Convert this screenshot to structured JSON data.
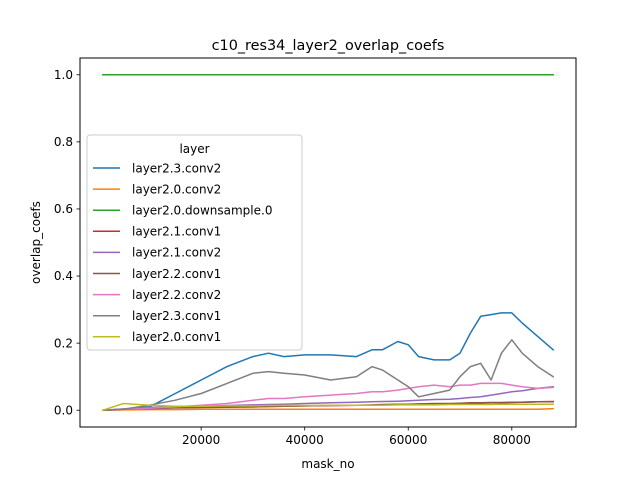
{
  "chart_data": {
    "type": "line",
    "title": "c10_res34_layer2_overlap_coefs",
    "xlabel": "mask_no",
    "ylabel": "overlap_coefs",
    "xlim": [
      -3400,
      92400
    ],
    "ylim": [
      -0.05,
      1.05
    ],
    "xticks": [
      20000,
      40000,
      60000,
      80000
    ],
    "xtick_labels": [
      "20000",
      "40000",
      "60000",
      "80000"
    ],
    "yticks": [
      0.0,
      0.2,
      0.4,
      0.6,
      0.8,
      1.0
    ],
    "ytick_labels": [
      "0.0",
      "0.2",
      "0.4",
      "0.6",
      "0.8",
      "1.0"
    ],
    "grid": false,
    "legend": {
      "title": "layer",
      "placement": "center-left"
    },
    "x": [
      1000,
      5000,
      10000,
      15000,
      20000,
      25000,
      30000,
      33000,
      36000,
      40000,
      45000,
      50000,
      53000,
      55000,
      58000,
      60000,
      62000,
      65000,
      68000,
      70000,
      72000,
      74000,
      76000,
      78000,
      80000,
      82000,
      85000,
      88000
    ],
    "series": [
      {
        "name": "layer2.3.conv2",
        "color": "#1f77b4",
        "values": [
          0.0,
          0.002,
          0.01,
          0.05,
          0.09,
          0.13,
          0.16,
          0.17,
          0.16,
          0.165,
          0.165,
          0.16,
          0.18,
          0.18,
          0.205,
          0.195,
          0.16,
          0.15,
          0.15,
          0.17,
          0.23,
          0.28,
          0.285,
          0.29,
          0.29,
          0.26,
          0.22,
          0.18
        ]
      },
      {
        "name": "layer2.0.conv2",
        "color": "#ff7f0e",
        "values": [
          0.0,
          0.001,
          0.002,
          0.002,
          0.003,
          0.003,
          0.003,
          0.003,
          0.003,
          0.003,
          0.003,
          0.003,
          0.003,
          0.003,
          0.003,
          0.003,
          0.003,
          0.003,
          0.003,
          0.003,
          0.003,
          0.003,
          0.003,
          0.003,
          0.003,
          0.003,
          0.003,
          0.005
        ]
      },
      {
        "name": "layer2.0.downsample.0",
        "color": "#2ca02c",
        "values": [
          1.0,
          1.0,
          1.0,
          1.0,
          1.0,
          1.0,
          1.0,
          1.0,
          1.0,
          1.0,
          1.0,
          1.0,
          1.0,
          1.0,
          1.0,
          1.0,
          1.0,
          1.0,
          1.0,
          1.0,
          1.0,
          1.0,
          1.0,
          1.0,
          1.0,
          1.0,
          1.0,
          1.0
        ]
      },
      {
        "name": "layer2.1.conv1",
        "color": "#d62728",
        "values": [
          0.0,
          0.003,
          0.006,
          0.008,
          0.009,
          0.01,
          0.01,
          0.011,
          0.012,
          0.013,
          0.014,
          0.015,
          0.015,
          0.016,
          0.017,
          0.018,
          0.018,
          0.019,
          0.019,
          0.02,
          0.02,
          0.021,
          0.022,
          0.022,
          0.023,
          0.024,
          0.025,
          0.026
        ]
      },
      {
        "name": "layer2.1.conv2",
        "color": "#9467bd",
        "values": [
          0.0,
          0.004,
          0.008,
          0.01,
          0.012,
          0.014,
          0.016,
          0.017,
          0.018,
          0.02,
          0.022,
          0.024,
          0.025,
          0.026,
          0.027,
          0.028,
          0.03,
          0.032,
          0.033,
          0.035,
          0.038,
          0.04,
          0.045,
          0.05,
          0.055,
          0.058,
          0.065,
          0.07
        ]
      },
      {
        "name": "layer2.2.conv1",
        "color": "#8c564b",
        "values": [
          0.0,
          0.003,
          0.005,
          0.007,
          0.008,
          0.009,
          0.01,
          0.011,
          0.012,
          0.013,
          0.014,
          0.015,
          0.016,
          0.017,
          0.018,
          0.018,
          0.019,
          0.02,
          0.02,
          0.021,
          0.022,
          0.022,
          0.023,
          0.023,
          0.024,
          0.024,
          0.025,
          0.025
        ]
      },
      {
        "name": "layer2.2.conv2",
        "color": "#e377c2",
        "values": [
          0.0,
          0.003,
          0.006,
          0.01,
          0.015,
          0.02,
          0.03,
          0.035,
          0.035,
          0.04,
          0.045,
          0.05,
          0.055,
          0.055,
          0.06,
          0.065,
          0.07,
          0.075,
          0.07,
          0.075,
          0.075,
          0.08,
          0.08,
          0.08,
          0.075,
          0.07,
          0.065,
          0.068
        ]
      },
      {
        "name": "layer2.3.conv1",
        "color": "#7f7f7f",
        "values": [
          0.0,
          0.003,
          0.015,
          0.03,
          0.05,
          0.08,
          0.11,
          0.115,
          0.11,
          0.105,
          0.09,
          0.1,
          0.13,
          0.12,
          0.09,
          0.07,
          0.04,
          0.05,
          0.06,
          0.1,
          0.13,
          0.14,
          0.09,
          0.17,
          0.21,
          0.17,
          0.13,
          0.1
        ]
      },
      {
        "name": "layer2.0.conv1",
        "color": "#bcbd22",
        "values": [
          0.0,
          0.02,
          0.015,
          0.012,
          0.012,
          0.013,
          0.013,
          0.014,
          0.014,
          0.014,
          0.015,
          0.015,
          0.015,
          0.015,
          0.016,
          0.016,
          0.016,
          0.016,
          0.017,
          0.017,
          0.017,
          0.017,
          0.017,
          0.018,
          0.018,
          0.018,
          0.018,
          0.018
        ]
      }
    ]
  }
}
